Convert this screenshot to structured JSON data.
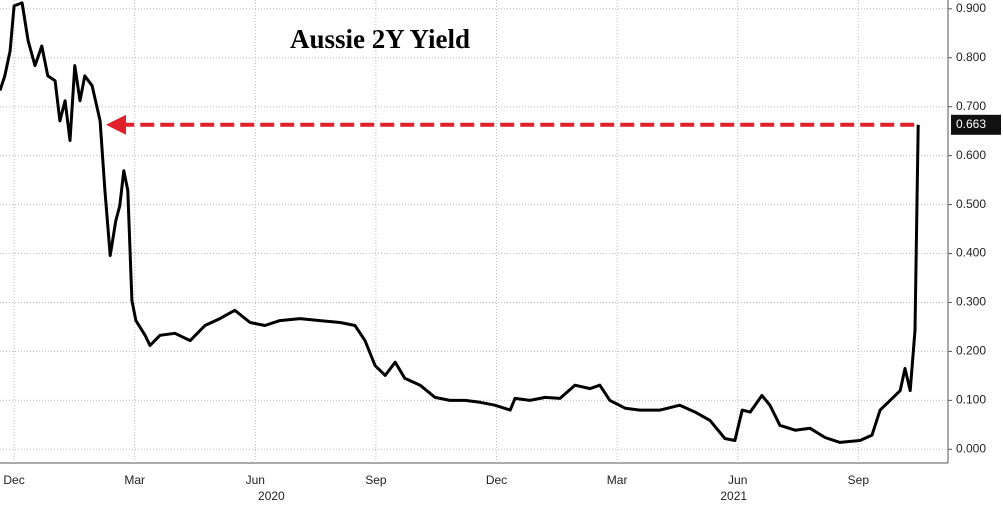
{
  "chart_data": {
    "type": "line",
    "title": "Aussie 2Y Yield",
    "color": "#000000",
    "grid": true,
    "x": [
      0.15,
      0.27,
      0.4,
      0.5,
      0.7,
      0.85,
      1.02,
      1.19,
      1.34,
      1.52,
      1.64,
      1.77,
      1.89,
      2.01,
      2.14,
      2.26,
      2.44,
      2.64,
      2.76,
      2.89,
      3.03,
      3.13,
      3.23,
      3.33,
      3.43,
      3.53,
      3.76,
      3.88,
      4.13,
      4.5,
      4.88,
      5.25,
      5.62,
      5.99,
      6.37,
      6.74,
      7.11,
      7.61,
      8.11,
      8.61,
      8.98,
      9.23,
      9.48,
      9.73,
      9.98,
      10.22,
      10.6,
      10.97,
      11.34,
      11.72,
      12.09,
      12.46,
      12.84,
      12.96,
      13.33,
      13.71,
      14.08,
      14.45,
      14.83,
      15.07,
      15.32,
      15.7,
      16.07,
      16.57,
      17.06,
      17.44,
      17.81,
      18.18,
      18.43,
      18.61,
      18.81,
      19.1,
      19.3,
      19.55,
      19.93,
      20.3,
      20.67,
      21.04,
      21.54,
      21.84,
      22.04,
      22.29,
      22.54,
      22.66,
      22.79,
      22.91,
      22.99
    ],
    "values": [
      0.733,
      0.763,
      0.814,
      0.906,
      0.912,
      0.835,
      0.784,
      0.824,
      0.763,
      0.753,
      0.671,
      0.712,
      0.631,
      0.784,
      0.712,
      0.763,
      0.743,
      0.671,
      0.529,
      0.396,
      0.467,
      0.498,
      0.569,
      0.529,
      0.304,
      0.263,
      0.233,
      0.212,
      0.233,
      0.237,
      0.222,
      0.253,
      0.267,
      0.284,
      0.259,
      0.253,
      0.263,
      0.267,
      0.263,
      0.259,
      0.253,
      0.222,
      0.171,
      0.151,
      0.178,
      0.145,
      0.131,
      0.106,
      0.1,
      0.1,
      0.096,
      0.09,
      0.08,
      0.104,
      0.1,
      0.106,
      0.104,
      0.131,
      0.124,
      0.131,
      0.1,
      0.084,
      0.08,
      0.08,
      0.09,
      0.076,
      0.059,
      0.022,
      0.018,
      0.08,
      0.076,
      0.11,
      0.09,
      0.049,
      0.039,
      0.043,
      0.024,
      0.014,
      0.018,
      0.029,
      0.08,
      0.1,
      0.12,
      0.165,
      0.12,
      0.243,
      0.663
    ],
    "xlim": [
      0.15,
      23.73
    ],
    "xticks": [
      {
        "value": 0.5,
        "label": "Dec"
      },
      {
        "value": 3.5,
        "label": "Mar"
      },
      {
        "value": 6.5,
        "label": "Jun"
      },
      {
        "value": 9.5,
        "label": "Sep"
      },
      {
        "value": 12.5,
        "label": "Dec"
      },
      {
        "value": 15.5,
        "label": "Mar"
      },
      {
        "value": 18.5,
        "label": "Jun"
      },
      {
        "value": 21.5,
        "label": "Sep"
      }
    ],
    "year_ticks": [
      {
        "value": 6.9,
        "label": "2020"
      },
      {
        "value": 18.4,
        "label": "2021"
      }
    ],
    "ylim": [
      -0.028,
      0.918
    ],
    "yticks": [
      {
        "value": 0,
        "label": "0.000"
      },
      {
        "value": 0.1,
        "label": "0.100"
      },
      {
        "value": 0.2,
        "label": "0.200"
      },
      {
        "value": 0.3,
        "label": "0.300"
      },
      {
        "value": 0.4,
        "label": "0.400"
      },
      {
        "value": 0.5,
        "label": "0.500"
      },
      {
        "value": 0.6,
        "label": "0.600"
      },
      {
        "value": 0.7,
        "label": "0.700"
      },
      {
        "value": 0.8,
        "label": "0.800"
      },
      {
        "value": 0.9,
        "label": "0.900"
      }
    ]
  }
}
